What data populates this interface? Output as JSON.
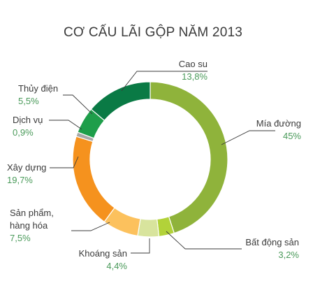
{
  "chart_data": {
    "type": "pie",
    "variant": "donut",
    "title": "CƠ CẤU LÃI GỘP NĂM 2013",
    "slices": [
      {
        "label": "Mía đường",
        "value": 45,
        "display_value": "45%",
        "color": "#8fb33b"
      },
      {
        "label": "Bất động sản",
        "value": 3.2,
        "display_value": "3,2%",
        "color": "#b2d239"
      },
      {
        "label": "Khoáng sản",
        "value": 4.4,
        "display_value": "4,4%",
        "color": "#d8e49d"
      },
      {
        "label": "Sản phẩm,",
        "label_line2": "hàng hóa",
        "value": 7.5,
        "display_value": "7,5%",
        "color": "#fcc15d"
      },
      {
        "label": "Xây dựng",
        "value": 19.7,
        "display_value": "19,7%",
        "color": "#f5921e"
      },
      {
        "label": "Dịch vụ",
        "value": 0.9,
        "display_value": "0,9%",
        "color": "#a8a8a8"
      },
      {
        "label": "Thủy điện",
        "value": 5.5,
        "display_value": "5,5%",
        "color": "#1e9e4a"
      },
      {
        "label": "Cao su",
        "value": 13.8,
        "display_value": "13,8%",
        "color": "#0a7a45"
      }
    ]
  }
}
